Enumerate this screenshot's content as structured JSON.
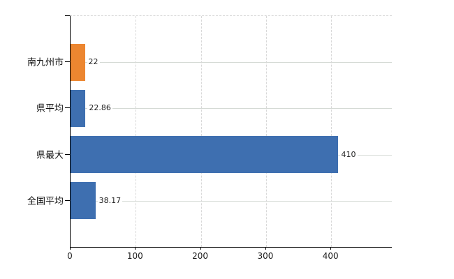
{
  "chart_data": {
    "type": "bar",
    "orientation": "horizontal",
    "title": "",
    "xlabel": "",
    "ylabel": "",
    "categories": [
      "南九州市",
      "県平均",
      "県最大",
      "全国平均"
    ],
    "values": [
      22,
      22.86,
      410,
      38.17
    ],
    "value_labels": [
      "22",
      "22.86",
      "410",
      "38.17"
    ],
    "bar_colors": [
      "#EC8630",
      "#3E6FB0",
      "#3E6FB0",
      "#3E6FB0"
    ],
    "x_ticks": [
      0,
      100,
      200,
      300,
      400
    ],
    "x_tick_labels": [
      "0",
      "100",
      "200",
      "300",
      "400"
    ],
    "xlim": [
      0,
      493
    ],
    "grid": true,
    "legend": false
  },
  "colors": {
    "bar_orange": "#EC8630",
    "bar_blue": "#3E6FB0",
    "axis_line": "#000000",
    "gridline_dashed": "#D8D8D8",
    "gridline_solid": "#D5DAD5",
    "label_text": "#111111"
  }
}
